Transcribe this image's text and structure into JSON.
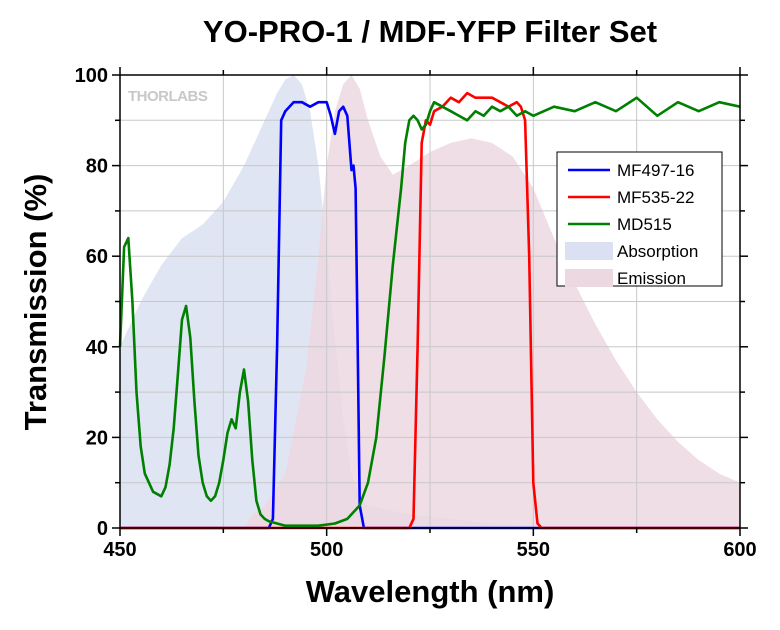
{
  "chart_data": {
    "type": "line",
    "title": "YO-PRO-1 / MDF-YFP Filter Set",
    "xlabel": "Wavelength (nm)",
    "ylabel": "Transmission (%)",
    "xlim": [
      450,
      600
    ],
    "ylim": [
      0,
      100
    ],
    "xticks": [
      450,
      500,
      550,
      600
    ],
    "yticks": [
      0,
      20,
      40,
      60,
      80,
      100
    ],
    "grid": true,
    "legend_position": "right",
    "watermark": "THORLABS",
    "series": [
      {
        "name": "MF497-16",
        "kind": "line",
        "color": "#0000ff",
        "x": [
          450,
          486,
          487,
          488,
          489,
          490,
          492,
          494,
          496,
          498,
          500,
          501,
          502,
          503,
          504,
          505,
          506,
          506.5,
          507,
          507.5,
          508,
          509,
          510,
          600
        ],
        "y": [
          0,
          0,
          2,
          40,
          90,
          92,
          94,
          94,
          93,
          94,
          94,
          91,
          87,
          92,
          93,
          91,
          79,
          80,
          75,
          40,
          5,
          0,
          0,
          0
        ]
      },
      {
        "name": "MF535-22",
        "kind": "line",
        "color": "#ff0000",
        "x": [
          450,
          520,
          521,
          522,
          523,
          524,
          525,
          526,
          528,
          530,
          532,
          534,
          536,
          538,
          540,
          542,
          544,
          546,
          547,
          548,
          549,
          550,
          551,
          552,
          600
        ],
        "y": [
          0,
          0,
          2,
          40,
          85,
          90,
          89,
          92,
          93,
          95,
          94,
          96,
          95,
          95,
          95,
          94,
          93,
          94,
          93,
          90,
          60,
          10,
          1,
          0,
          0
        ]
      },
      {
        "name": "MD515",
        "kind": "line",
        "color": "#008000",
        "x": [
          450,
          451,
          452,
          453,
          454,
          455,
          456,
          458,
          460,
          461,
          462,
          463,
          464,
          465,
          466,
          467,
          468,
          469,
          470,
          471,
          472,
          473,
          474,
          475,
          476,
          477,
          478,
          479,
          480,
          481,
          482,
          483,
          484,
          485,
          486,
          488,
          490,
          494,
          498,
          502,
          505,
          508,
          510,
          512,
          514,
          516,
          518,
          519,
          520,
          521,
          522,
          523,
          524,
          525,
          526,
          528,
          530,
          532,
          534,
          536,
          538,
          540,
          542,
          544,
          546,
          548,
          550,
          555,
          560,
          565,
          570,
          575,
          580,
          585,
          590,
          595,
          600
        ],
        "y": [
          40,
          62,
          64,
          50,
          30,
          18,
          12,
          8,
          7,
          9,
          14,
          22,
          34,
          46,
          49,
          42,
          28,
          16,
          10,
          7,
          6,
          7,
          10,
          15,
          21,
          24,
          22,
          30,
          35,
          28,
          15,
          6,
          3,
          2,
          1.5,
          1,
          0.5,
          0.5,
          0.5,
          1,
          2,
          5,
          10,
          20,
          38,
          58,
          75,
          85,
          90,
          91,
          90,
          88,
          89,
          92,
          94,
          93,
          92,
          91,
          90,
          92,
          91,
          93,
          92,
          93,
          91,
          92,
          91,
          93,
          92,
          94,
          92,
          95,
          91,
          94,
          92,
          94,
          93
        ]
      },
      {
        "name": "Absorption",
        "kind": "area",
        "color": "#dbe0f2",
        "x": [
          450,
          455,
          460,
          465,
          470,
          475,
          480,
          485,
          488,
          490,
          492,
          494,
          496,
          498,
          500,
          502,
          504,
          506,
          508,
          510,
          515,
          520,
          530,
          540,
          550,
          555
        ],
        "y": [
          40,
          50,
          58,
          64,
          67,
          72,
          80,
          90,
          96,
          99,
          100,
          98,
          92,
          80,
          62,
          42,
          24,
          12,
          7,
          5,
          4,
          3,
          2,
          1,
          0.5,
          0
        ]
      },
      {
        "name": "Emission",
        "kind": "area",
        "color": "#ecd8e0",
        "x": [
          480,
          482,
          485,
          490,
          495,
          498,
          500,
          502,
          504,
          506,
          508,
          510,
          513,
          516,
          520,
          525,
          530,
          535,
          540,
          545,
          550,
          555,
          560,
          565,
          570,
          575,
          580,
          585,
          590,
          595,
          600
        ],
        "y": [
          0,
          3,
          5,
          12,
          35,
          60,
          80,
          92,
          98,
          100,
          97,
          90,
          82,
          78,
          80,
          83,
          85,
          86,
          85,
          82,
          75,
          64,
          54,
          45,
          37,
          30,
          24,
          19,
          15,
          12,
          10
        ]
      }
    ]
  }
}
